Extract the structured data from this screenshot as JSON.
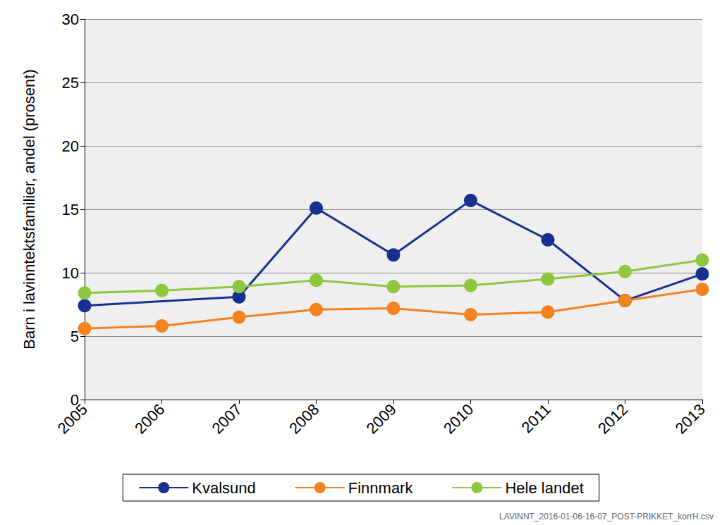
{
  "chart_data": {
    "type": "line",
    "y_label": "Barn i lavinntektsfamilier, andel (prosent)",
    "annotation": "LAVINNT_2016-01-06-16-07_POST-PRIKKET_korrH.csv",
    "categories": [
      "2005",
      "2006",
      "2007",
      "2008",
      "2009",
      "2010",
      "2011",
      "2012",
      "2013"
    ],
    "series": [
      {
        "name": "Kvalsund",
        "color": "#16308f",
        "values": [
          7.4,
          null,
          8.1,
          15.1,
          11.4,
          15.7,
          12.6,
          7.8,
          9.9
        ]
      },
      {
        "name": "Finnmark",
        "color": "#f58220",
        "values": [
          5.6,
          5.8,
          6.5,
          7.1,
          7.2,
          6.7,
          6.9,
          7.8,
          8.7
        ]
      },
      {
        "name": "Hele landet",
        "color": "#8dc63f",
        "values": [
          8.4,
          8.6,
          8.9,
          9.4,
          8.9,
          9.0,
          9.5,
          10.1,
          11.0
        ]
      }
    ],
    "ylim": [
      0,
      30
    ],
    "yticks": [
      0,
      5,
      10,
      15,
      20,
      25,
      30
    ],
    "grid": true,
    "legend": "bottom",
    "marker": "circle"
  }
}
